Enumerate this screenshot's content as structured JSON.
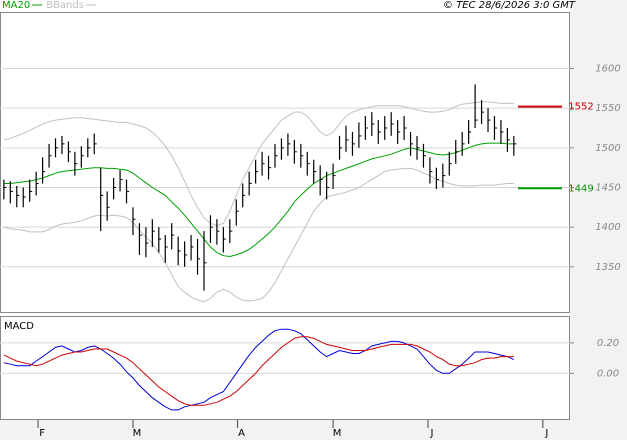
{
  "header": {
    "copyright": "© TEC 28/6/2026 3:0 GMT"
  },
  "chart_data": [
    {
      "type": "ohlc",
      "xlim": [
        -0.6,
        87.7
      ],
      "ylim": [
        1293,
        1670
      ],
      "yticks": [
        1350,
        1400,
        1450,
        1500,
        1550,
        1600
      ],
      "grid": true,
      "high": [
        1460,
        1458,
        1452,
        1450,
        1460,
        1470,
        1488,
        1505,
        1512,
        1515,
        1508,
        1495,
        1502,
        1512,
        1518,
        1475,
        1445,
        1462,
        1472,
        1460,
        1425,
        1405,
        1400,
        1410,
        1400,
        1390,
        1405,
        1388,
        1382,
        1390,
        1385,
        1395,
        1415,
        1410,
        1400,
        1410,
        1435,
        1455,
        1470,
        1485,
        1495,
        1490,
        1505,
        1512,
        1518,
        1510,
        1505,
        1495,
        1485,
        1478,
        1470,
        1480,
        1515,
        1528,
        1520,
        1532,
        1540,
        1545,
        1535,
        1540,
        1545,
        1535,
        1540,
        1520,
        1515,
        1505,
        1488,
        1475,
        1480,
        1495,
        1510,
        1520,
        1535,
        1580,
        1560,
        1550,
        1540,
        1535,
        1525,
        1515
      ],
      "low": [
        1435,
        1430,
        1425,
        1425,
        1432,
        1440,
        1455,
        1475,
        1488,
        1492,
        1482,
        1465,
        1475,
        1488,
        1492,
        1395,
        1408,
        1435,
        1445,
        1430,
        1390,
        1365,
        1362,
        1375,
        1368,
        1355,
        1372,
        1352,
        1350,
        1358,
        1340,
        1320,
        1380,
        1378,
        1368,
        1380,
        1402,
        1425,
        1440,
        1455,
        1465,
        1460,
        1475,
        1485,
        1490,
        1480,
        1475,
        1465,
        1455,
        1440,
        1435,
        1448,
        1485,
        1495,
        1490,
        1500,
        1510,
        1515,
        1505,
        1510,
        1515,
        1505,
        1510,
        1490,
        1485,
        1475,
        1455,
        1448,
        1450,
        1465,
        1480,
        1490,
        1505,
        1525,
        1530,
        1520,
        1510,
        1505,
        1495,
        1490
      ],
      "close": [
        1450,
        1445,
        1440,
        1438,
        1445,
        1455,
        1470,
        1490,
        1500,
        1505,
        1495,
        1480,
        1490,
        1500,
        1505,
        1440,
        1425,
        1450,
        1460,
        1445,
        1410,
        1390,
        1380,
        1395,
        1385,
        1375,
        1390,
        1370,
        1365,
        1375,
        1360,
        1355,
        1400,
        1395,
        1385,
        1395,
        1420,
        1440,
        1455,
        1470,
        1480,
        1475,
        1490,
        1500,
        1505,
        1495,
        1490,
        1480,
        1470,
        1460,
        1450,
        1465,
        1500,
        1510,
        1505,
        1515,
        1525,
        1530,
        1520,
        1525,
        1530,
        1520,
        1525,
        1505,
        1500,
        1490,
        1470,
        1460,
        1465,
        1480,
        1495,
        1505,
        1520,
        1535,
        1545,
        1535,
        1525,
        1520,
        1510,
        1505
      ],
      "color": "#000000",
      "series": [
        {
          "name": "MA20",
          "color": "#00a000",
          "values": [
            1455,
            1455,
            1456,
            1457,
            1458,
            1460,
            1462,
            1465,
            1468,
            1470,
            1471,
            1472,
            1473,
            1474,
            1475,
            1475,
            1474,
            1474,
            1473,
            1472,
            1468,
            1462,
            1456,
            1450,
            1445,
            1440,
            1432,
            1424,
            1415,
            1405,
            1395,
            1385,
            1375,
            1368,
            1364,
            1363,
            1365,
            1368,
            1372,
            1378,
            1385,
            1392,
            1400,
            1410,
            1420,
            1432,
            1440,
            1448,
            1455,
            1460,
            1465,
            1468,
            1471,
            1474,
            1477,
            1480,
            1483,
            1486,
            1488,
            1490,
            1492,
            1495,
            1498,
            1500,
            1498,
            1496,
            1494,
            1492,
            1491,
            1492,
            1494,
            1497,
            1500,
            1503,
            1505,
            1506,
            1506,
            1506,
            1505,
            1505
          ]
        },
        {
          "name": "BBands",
          "color": "#c0c0c0",
          "upper": [
            1510,
            1512,
            1515,
            1518,
            1522,
            1526,
            1530,
            1533,
            1535,
            1536,
            1537,
            1538,
            1538,
            1537,
            1536,
            1535,
            1534,
            1533,
            1532,
            1532,
            1530,
            1528,
            1525,
            1520,
            1512,
            1502,
            1490,
            1475,
            1458,
            1440,
            1425,
            1412,
            1405,
            1402,
            1405,
            1420,
            1440,
            1460,
            1475,
            1490,
            1505,
            1515,
            1525,
            1535,
            1540,
            1545,
            1545,
            1540,
            1530,
            1520,
            1515,
            1520,
            1530,
            1540,
            1545,
            1548,
            1550,
            1552,
            1553,
            1553,
            1553,
            1553,
            1552,
            1550,
            1548,
            1546,
            1545,
            1545,
            1546,
            1548,
            1552,
            1555,
            1556,
            1557,
            1558,
            1558,
            1557,
            1556,
            1556,
            1556
          ],
          "lower": [
            1400,
            1398,
            1397,
            1396,
            1394,
            1394,
            1394,
            1397,
            1401,
            1404,
            1405,
            1406,
            1408,
            1411,
            1414,
            1415,
            1414,
            1415,
            1414,
            1412,
            1406,
            1396,
            1387,
            1380,
            1368,
            1355,
            1340,
            1325,
            1318,
            1312,
            1308,
            1306,
            1310,
            1318,
            1322,
            1318,
            1312,
            1308,
            1307,
            1308,
            1310,
            1318,
            1330,
            1345,
            1360,
            1375,
            1390,
            1405,
            1420,
            1430,
            1438,
            1440,
            1442,
            1444,
            1447,
            1450,
            1455,
            1460,
            1465,
            1470,
            1472,
            1473,
            1474,
            1474,
            1472,
            1468,
            1465,
            1460,
            1458,
            1455,
            1453,
            1452,
            1452,
            1452,
            1453,
            1453,
            1453,
            1454,
            1455,
            1455
          ]
        }
      ],
      "levels": [
        {
          "value": 1552,
          "color": "#cc0000"
        },
        {
          "value": 1449,
          "color": "#009900"
        }
      ]
    },
    {
      "type": "line",
      "title": "MACD",
      "xlim": [
        -0.6,
        87.7
      ],
      "xticks": [
        {
          "value": 5.3,
          "label": "F"
        },
        {
          "value": 20,
          "label": "M"
        },
        {
          "value": 36.2,
          "label": "A"
        },
        {
          "value": 51,
          "label": "M"
        },
        {
          "value": 65.7,
          "label": "J"
        },
        {
          "value": 83.5,
          "label": "J"
        }
      ],
      "ylim": [
        -0.3,
        0.37
      ],
      "yticks": [
        {
          "value": 0.2,
          "label": "0.20"
        },
        {
          "value": 0,
          "label": "0.00"
        }
      ],
      "grid": true,
      "series": [
        {
          "color": "#0000dd",
          "values": [
            0.07,
            0.06,
            0.05,
            0.05,
            0.05,
            0.08,
            0.11,
            0.14,
            0.17,
            0.18,
            0.16,
            0.14,
            0.15,
            0.17,
            0.18,
            0.16,
            0.13,
            0.1,
            0.06,
            0.01,
            -0.03,
            -0.08,
            -0.12,
            -0.16,
            -0.19,
            -0.22,
            -0.24,
            -0.24,
            -0.22,
            -0.21,
            -0.2,
            -0.19,
            -0.16,
            -0.14,
            -0.12,
            -0.06,
            0.0,
            0.06,
            0.12,
            0.17,
            0.21,
            0.25,
            0.28,
            0.29,
            0.29,
            0.28,
            0.26,
            0.22,
            0.18,
            0.14,
            0.11,
            0.13,
            0.15,
            0.14,
            0.13,
            0.13,
            0.15,
            0.18,
            0.19,
            0.2,
            0.21,
            0.21,
            0.2,
            0.18,
            0.16,
            0.11,
            0.06,
            0.02,
            0.0,
            0.0,
            0.03,
            0.06,
            0.1,
            0.14,
            0.14,
            0.14,
            0.13,
            0.12,
            0.11,
            0.09
          ]
        },
        {
          "color": "#cc0000",
          "values": [
            0.12,
            0.1,
            0.08,
            0.07,
            0.06,
            0.05,
            0.06,
            0.08,
            0.1,
            0.12,
            0.13,
            0.14,
            0.14,
            0.15,
            0.16,
            0.16,
            0.16,
            0.14,
            0.12,
            0.1,
            0.07,
            0.03,
            -0.01,
            -0.05,
            -0.09,
            -0.12,
            -0.15,
            -0.18,
            -0.2,
            -0.21,
            -0.21,
            -0.21,
            -0.2,
            -0.19,
            -0.17,
            -0.15,
            -0.12,
            -0.08,
            -0.04,
            0.0,
            0.05,
            0.09,
            0.13,
            0.17,
            0.2,
            0.23,
            0.24,
            0.24,
            0.23,
            0.21,
            0.19,
            0.18,
            0.17,
            0.16,
            0.15,
            0.15,
            0.15,
            0.16,
            0.17,
            0.18,
            0.19,
            0.19,
            0.19,
            0.19,
            0.18,
            0.16,
            0.14,
            0.11,
            0.09,
            0.06,
            0.05,
            0.05,
            0.06,
            0.07,
            0.09,
            0.1,
            0.1,
            0.11,
            0.11,
            0.11
          ]
        }
      ]
    }
  ]
}
